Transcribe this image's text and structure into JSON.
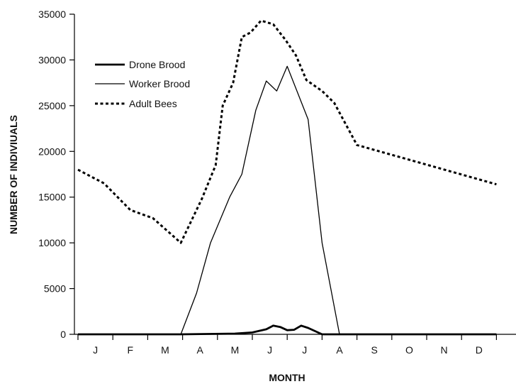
{
  "chart_data": {
    "type": "line",
    "xlabel": "MONTH",
    "ylabel": "NUMBER OF INDIVIUALS",
    "ylim": [
      0,
      35000
    ],
    "y_ticks": [
      0,
      5000,
      10000,
      15000,
      20000,
      25000,
      30000,
      35000
    ],
    "y_tick_labels": [
      "0",
      "5000",
      "10000",
      "15000",
      "20000",
      "25000",
      "30000",
      "35000"
    ],
    "x_tick_labels": [
      "J",
      "F",
      "M",
      "A",
      "M",
      "J",
      "J",
      "A",
      "S",
      "O",
      "N",
      "D"
    ],
    "grid": false,
    "legend_position": "top-left",
    "series": [
      {
        "name": "Drone Brood",
        "style": "thick-solid",
        "color": "#000000",
        "x": [
          0,
          2.95,
          4.5,
          5.0,
          5.4,
          5.6,
          5.8,
          6.0,
          6.2,
          6.4,
          6.6,
          7.0,
          7.5,
          8.0,
          12
        ],
        "y": [
          0,
          0,
          80,
          200,
          550,
          950,
          800,
          450,
          500,
          950,
          700,
          0,
          0,
          0,
          0
        ]
      },
      {
        "name": "Worker Brood",
        "style": "thin-solid",
        "color": "#000000",
        "x": [
          2.95,
          3.4,
          3.8,
          4.35,
          4.7,
          5.1,
          5.4,
          5.7,
          6.0,
          6.6,
          7.0,
          7.5,
          8.05,
          12
        ],
        "y": [
          0,
          4500,
          10000,
          15000,
          17500,
          24500,
          27700,
          26600,
          29300,
          23500,
          10000,
          0,
          0,
          0
        ]
      },
      {
        "name": "Adult Bees",
        "style": "dotted",
        "color": "#000000",
        "x": [
          0,
          0.75,
          1.5,
          2.15,
          2.95,
          3.55,
          3.95,
          4.15,
          4.45,
          4.7,
          4.95,
          5.25,
          5.6,
          5.95,
          6.25,
          6.55,
          7.0,
          7.35,
          8.0,
          12
        ],
        "y": [
          18000,
          16500,
          13600,
          12700,
          10000,
          14800,
          18500,
          25000,
          27500,
          32500,
          33000,
          34300,
          33900,
          32200,
          30500,
          27800,
          26600,
          25300,
          20700,
          16400
        ]
      }
    ]
  }
}
